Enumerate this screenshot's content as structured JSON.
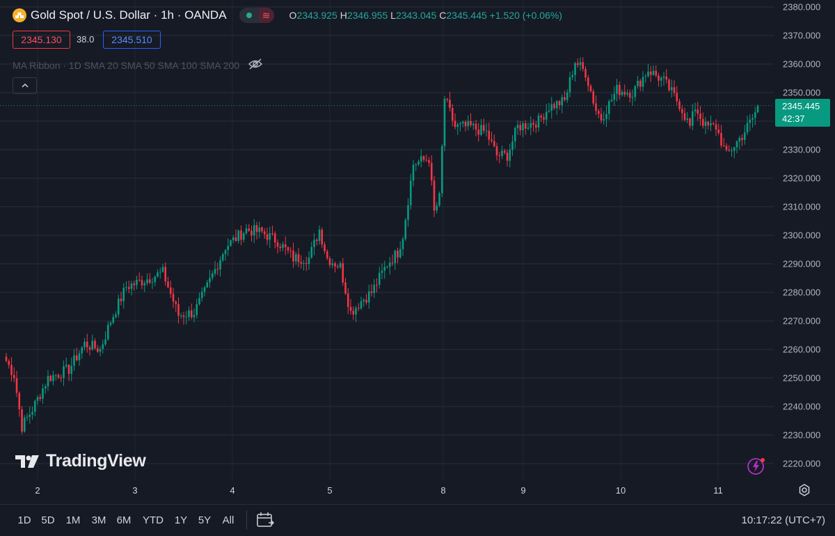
{
  "legend": {
    "symbol_title": "Gold Spot / U.S. Dollar · 1h · OANDA",
    "open_label": "O",
    "open": "2343.925",
    "high_label": "H",
    "high": "2346.955",
    "low_label": "L",
    "low": "2343.045",
    "close_label": "C",
    "close": "2345.445",
    "change": "+1.520 (+0.06%)",
    "bid": "2345.130",
    "spread": "38.0",
    "ask": "2345.510",
    "indicator": "MA Ribbon · 1D SMA 20 SMA 50 SMA 100 SMA 200",
    "collapse_icon": "chevron-up-icon"
  },
  "watermark": "TradingView",
  "price_axis": {
    "ticks": [
      "2380.000",
      "2370.000",
      "2360.000",
      "2350.000",
      "2340.000",
      "2330.000",
      "2320.000",
      "2310.000",
      "2300.000",
      "2290.000",
      "2280.000",
      "2270.000",
      "2260.000",
      "2250.000",
      "2240.000",
      "2230.000",
      "2220.000"
    ],
    "last_price": "2345.445",
    "countdown": "42:37"
  },
  "time_axis": {
    "ticks": [
      "2",
      "3",
      "4",
      "5",
      "8",
      "9",
      "10",
      "11"
    ]
  },
  "bottom_bar": {
    "ranges": [
      "1D",
      "5D",
      "1M",
      "3M",
      "6M",
      "YTD",
      "1Y",
      "5Y",
      "All"
    ],
    "clock": "10:17:22 (UTC+7)"
  },
  "colors": {
    "up": "#089981",
    "down": "#f23645",
    "background": "#161a25",
    "grid": "#2a2e39"
  },
  "chart_data": {
    "type": "candlestick",
    "title": "Gold Spot / U.S. Dollar · 1h · OANDA",
    "ylim": [
      2216,
      2382
    ],
    "x_ticks": [
      "2",
      "3",
      "4",
      "5",
      "8",
      "9",
      "10",
      "11"
    ],
    "grid": true,
    "last_price": 2345.445,
    "anchors": [
      [
        0,
        2256
      ],
      [
        3,
        2251
      ],
      [
        6,
        2233
      ],
      [
        10,
        2239
      ],
      [
        16,
        2250
      ],
      [
        24,
        2253
      ],
      [
        30,
        2262
      ],
      [
        36,
        2260
      ],
      [
        40,
        2270
      ],
      [
        46,
        2282
      ],
      [
        52,
        2284
      ],
      [
        60,
        2287
      ],
      [
        66,
        2272
      ],
      [
        72,
        2273
      ],
      [
        76,
        2280
      ],
      [
        84,
        2296
      ],
      [
        92,
        2302
      ],
      [
        98,
        2301
      ],
      [
        104,
        2298
      ],
      [
        110,
        2292
      ],
      [
        116,
        2292
      ],
      [
        120,
        2302
      ],
      [
        123,
        2292
      ],
      [
        128,
        2289
      ],
      [
        132,
        2273
      ],
      [
        136,
        2277
      ],
      [
        140,
        2280
      ],
      [
        146,
        2290
      ],
      [
        150,
        2294
      ],
      [
        152,
        2300
      ],
      [
        156,
        2325
      ],
      [
        162,
        2327
      ],
      [
        164,
        2308
      ],
      [
        166,
        2313
      ],
      [
        168,
        2348
      ],
      [
        172,
        2338
      ],
      [
        178,
        2338
      ],
      [
        184,
        2336
      ],
      [
        188,
        2328
      ],
      [
        192,
        2328
      ],
      [
        196,
        2338
      ],
      [
        204,
        2340
      ],
      [
        208,
        2345
      ],
      [
        214,
        2347
      ],
      [
        218,
        2361
      ],
      [
        222,
        2357
      ],
      [
        226,
        2344
      ],
      [
        228,
        2341
      ],
      [
        234,
        2351
      ],
      [
        240,
        2350
      ],
      [
        246,
        2358
      ],
      [
        252,
        2354
      ],
      [
        258,
        2346
      ],
      [
        262,
        2338
      ],
      [
        264,
        2345
      ],
      [
        268,
        2338
      ],
      [
        272,
        2338
      ],
      [
        276,
        2328
      ],
      [
        282,
        2335
      ],
      [
        286,
        2341
      ],
      [
        288,
        2345
      ]
    ]
  }
}
